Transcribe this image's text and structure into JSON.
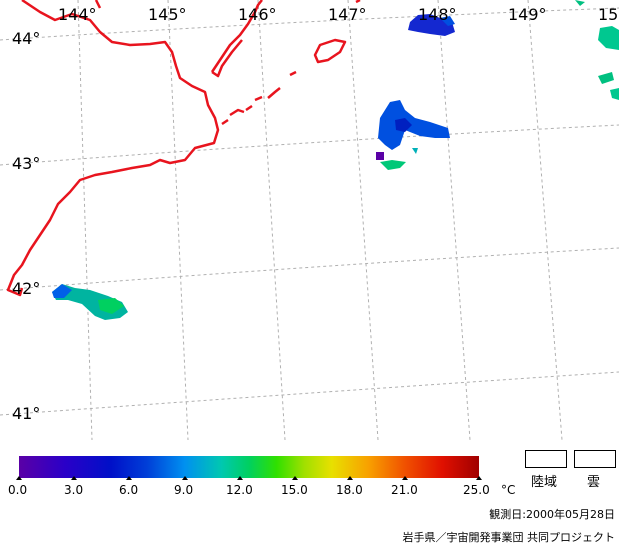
{
  "longitudes": [
    "144°",
    "145°",
    "146°",
    "147°",
    "148°",
    "149°",
    "15"
  ],
  "latitudes": [
    "44°",
    "43°",
    "42°",
    "41°"
  ],
  "colorbar": {
    "labels": [
      "0.0",
      "3.0",
      "6.0",
      "9.0",
      "12.0",
      "15.0",
      "18.0",
      "21.0",
      "25.0"
    ],
    "unit": "°C"
  },
  "legend": {
    "land": "陸域",
    "cloud": "雲"
  },
  "observation_date": "観測日:2000年05月28日",
  "credit": "岩手県／宇宙開発事業団 共同プロジェクト",
  "colors": {
    "coastline": "#e8141e",
    "grid": "#b4b4b4"
  }
}
